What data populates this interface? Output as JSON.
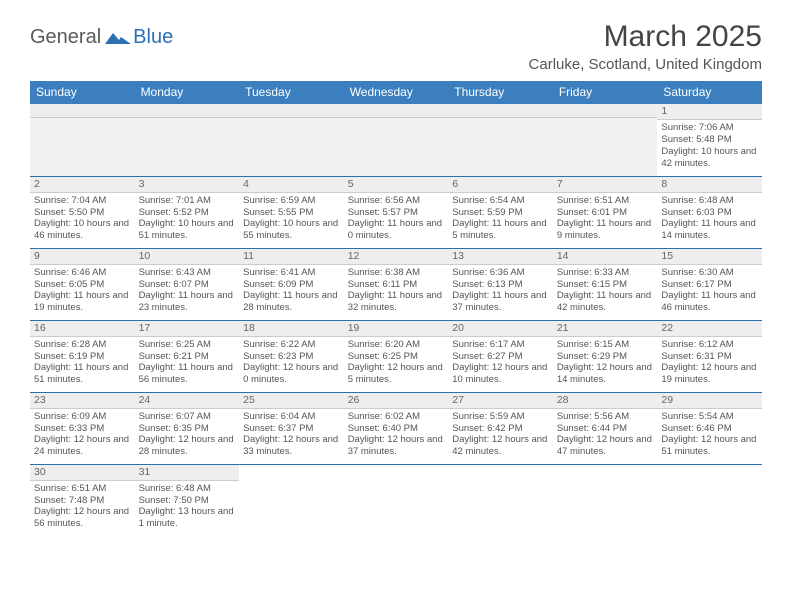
{
  "logo": {
    "text1": "General",
    "text2": "Blue"
  },
  "title": "March 2025",
  "location": "Carluke, Scotland, United Kingdom",
  "colors": {
    "header_bg": "#3b7fbf",
    "border": "#2d6fb5",
    "daynum_bg": "#eeeeee",
    "text": "#555555"
  },
  "weekdays": [
    "Sunday",
    "Monday",
    "Tuesday",
    "Wednesday",
    "Thursday",
    "Friday",
    "Saturday"
  ],
  "grid": [
    [
      null,
      null,
      null,
      null,
      null,
      null,
      {
        "n": "1",
        "sr": "7:06 AM",
        "ss": "5:48 PM",
        "dl": "10 hours and 42 minutes."
      }
    ],
    [
      {
        "n": "2",
        "sr": "7:04 AM",
        "ss": "5:50 PM",
        "dl": "10 hours and 46 minutes."
      },
      {
        "n": "3",
        "sr": "7:01 AM",
        "ss": "5:52 PM",
        "dl": "10 hours and 51 minutes."
      },
      {
        "n": "4",
        "sr": "6:59 AM",
        "ss": "5:55 PM",
        "dl": "10 hours and 55 minutes."
      },
      {
        "n": "5",
        "sr": "6:56 AM",
        "ss": "5:57 PM",
        "dl": "11 hours and 0 minutes."
      },
      {
        "n": "6",
        "sr": "6:54 AM",
        "ss": "5:59 PM",
        "dl": "11 hours and 5 minutes."
      },
      {
        "n": "7",
        "sr": "6:51 AM",
        "ss": "6:01 PM",
        "dl": "11 hours and 9 minutes."
      },
      {
        "n": "8",
        "sr": "6:48 AM",
        "ss": "6:03 PM",
        "dl": "11 hours and 14 minutes."
      }
    ],
    [
      {
        "n": "9",
        "sr": "6:46 AM",
        "ss": "6:05 PM",
        "dl": "11 hours and 19 minutes."
      },
      {
        "n": "10",
        "sr": "6:43 AM",
        "ss": "6:07 PM",
        "dl": "11 hours and 23 minutes."
      },
      {
        "n": "11",
        "sr": "6:41 AM",
        "ss": "6:09 PM",
        "dl": "11 hours and 28 minutes."
      },
      {
        "n": "12",
        "sr": "6:38 AM",
        "ss": "6:11 PM",
        "dl": "11 hours and 32 minutes."
      },
      {
        "n": "13",
        "sr": "6:36 AM",
        "ss": "6:13 PM",
        "dl": "11 hours and 37 minutes."
      },
      {
        "n": "14",
        "sr": "6:33 AM",
        "ss": "6:15 PM",
        "dl": "11 hours and 42 minutes."
      },
      {
        "n": "15",
        "sr": "6:30 AM",
        "ss": "6:17 PM",
        "dl": "11 hours and 46 minutes."
      }
    ],
    [
      {
        "n": "16",
        "sr": "6:28 AM",
        "ss": "6:19 PM",
        "dl": "11 hours and 51 minutes."
      },
      {
        "n": "17",
        "sr": "6:25 AM",
        "ss": "6:21 PM",
        "dl": "11 hours and 56 minutes."
      },
      {
        "n": "18",
        "sr": "6:22 AM",
        "ss": "6:23 PM",
        "dl": "12 hours and 0 minutes."
      },
      {
        "n": "19",
        "sr": "6:20 AM",
        "ss": "6:25 PM",
        "dl": "12 hours and 5 minutes."
      },
      {
        "n": "20",
        "sr": "6:17 AM",
        "ss": "6:27 PM",
        "dl": "12 hours and 10 minutes."
      },
      {
        "n": "21",
        "sr": "6:15 AM",
        "ss": "6:29 PM",
        "dl": "12 hours and 14 minutes."
      },
      {
        "n": "22",
        "sr": "6:12 AM",
        "ss": "6:31 PM",
        "dl": "12 hours and 19 minutes."
      }
    ],
    [
      {
        "n": "23",
        "sr": "6:09 AM",
        "ss": "6:33 PM",
        "dl": "12 hours and 24 minutes."
      },
      {
        "n": "24",
        "sr": "6:07 AM",
        "ss": "6:35 PM",
        "dl": "12 hours and 28 minutes."
      },
      {
        "n": "25",
        "sr": "6:04 AM",
        "ss": "6:37 PM",
        "dl": "12 hours and 33 minutes."
      },
      {
        "n": "26",
        "sr": "6:02 AM",
        "ss": "6:40 PM",
        "dl": "12 hours and 37 minutes."
      },
      {
        "n": "27",
        "sr": "5:59 AM",
        "ss": "6:42 PM",
        "dl": "12 hours and 42 minutes."
      },
      {
        "n": "28",
        "sr": "5:56 AM",
        "ss": "6:44 PM",
        "dl": "12 hours and 47 minutes."
      },
      {
        "n": "29",
        "sr": "5:54 AM",
        "ss": "6:46 PM",
        "dl": "12 hours and 51 minutes."
      }
    ],
    [
      {
        "n": "30",
        "sr": "6:51 AM",
        "ss": "7:48 PM",
        "dl": "12 hours and 56 minutes."
      },
      {
        "n": "31",
        "sr": "6:48 AM",
        "ss": "7:50 PM",
        "dl": "13 hours and 1 minute."
      },
      null,
      null,
      null,
      null,
      null
    ]
  ],
  "labels": {
    "sunrise": "Sunrise:",
    "sunset": "Sunset:",
    "daylight": "Daylight:"
  }
}
